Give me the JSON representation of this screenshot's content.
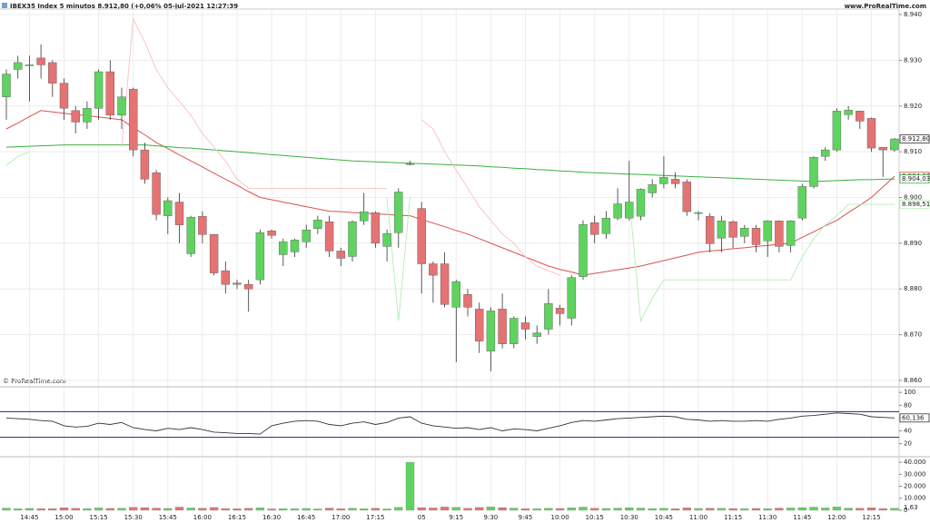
{
  "header": {
    "title": "IBEX35 Index 5 minutos 8.912,80 (+0,06% 05-jul-2021 12:27:39",
    "site": "www.ProRealTime.com",
    "copyright": "© ProRealTime.com"
  },
  "chart_data": [
    {
      "type": "candlestick",
      "categories": [
        null,
        null,
        "14:45",
        null,
        null,
        "15:00",
        null,
        null,
        "15:15",
        null,
        null,
        "15:30",
        null,
        null,
        "15:45",
        null,
        null,
        "16:00",
        null,
        null,
        "16:15",
        null,
        null,
        "16:30",
        null,
        null,
        "16:45",
        null,
        null,
        "17:00",
        null,
        null,
        "17:15",
        null,
        null,
        null,
        "05",
        null,
        null,
        "9:15",
        null,
        null,
        "9:30",
        null,
        null,
        "9:45",
        null,
        null,
        "10:00",
        null,
        null,
        "10:15",
        null,
        null,
        "10:30",
        null,
        null,
        "10:45",
        null,
        null,
        "11:00",
        null,
        null,
        "11:15",
        null,
        null,
        "11:30",
        null,
        null,
        "11:45",
        null,
        null,
        "12:00",
        null,
        null,
        "12:15",
        null,
        null
      ],
      "open": [
        8922,
        8928,
        8929,
        8930.5,
        8929.5,
        8925,
        8919,
        8916.5,
        8919.5,
        8927.5,
        8918,
        8923.7,
        8910.4,
        8905.4,
        8896,
        8899,
        8887.7,
        8895.9,
        8891.9,
        8884,
        8881.3,
        8881,
        8882,
        8892.7,
        8887.5,
        8888.1,
        8890.3,
        8893.2,
        8894.7,
        8888.3,
        8887.1,
        8894.9,
        8896.7,
        8889.3,
        8892.3,
        8907.4,
        8897.6,
        8885.5,
        8885.5,
        8876,
        8878.8,
        8875.6,
        8866.4,
        8875.6,
        8868,
        8872.6,
        8869.6,
        8871.2,
        8875.8,
        8873.6,
        8882.7,
        8894.5,
        8892.1,
        8895.5,
        8895.5,
        8895.9,
        8901,
        8903,
        8904,
        8903.4,
        8896.7,
        8895.9,
        8891.1,
        8894.7,
        8891.5,
        8893.3,
        8890.5,
        8894.9,
        8889.5,
        8895.5,
        8902.4,
        8909,
        8910.4,
        8918.1,
        8918.9,
        8917.3,
        8911,
        8910.4
      ],
      "high": [
        8928,
        8931,
        8931,
        8933.5,
        8930,
        8926,
        8920,
        8921,
        8928,
        8930,
        8924,
        8924,
        8912,
        8906,
        8900,
        8901,
        8896,
        8897,
        8892,
        8886,
        8882,
        8882,
        8893,
        8893,
        8891,
        8891,
        8894,
        8896,
        8896,
        8889,
        8895,
        8901,
        8897,
        8893,
        8902,
        8908,
        8899,
        8886,
        8888,
        8882,
        8880,
        8877,
        8876,
        8879,
        8874,
        8874,
        8872,
        8880,
        8876.5,
        8883,
        8895,
        8896,
        8897,
        8902,
        8908,
        8902,
        8904,
        8909,
        8905.5,
        8904,
        8897,
        8896.5,
        8896,
        8895,
        8894,
        8894,
        8895,
        8895,
        8895,
        8903,
        8909,
        8911,
        8919.5,
        8920,
        8919,
        8917.5,
        8911,
        8913
      ],
      "low": [
        8917,
        8926,
        8921,
        8926,
        8922,
        8917,
        8914,
        8915,
        8917,
        8917,
        8915,
        8909,
        8903,
        8895,
        8892,
        8890,
        8887,
        8890,
        8883,
        8879,
        8880,
        8875,
        8881,
        8891,
        8885,
        8887,
        8889,
        8892,
        8887,
        8885,
        8886,
        8894,
        8889,
        8886,
        8889,
        8907,
        8879,
        8877,
        8876,
        8864,
        8874,
        8866,
        8862,
        8867,
        8867,
        8869,
        8868,
        8870,
        8872,
        8872,
        8882,
        8890,
        8891,
        8895,
        8895,
        8895,
        8900,
        8902,
        8902,
        8896,
        8895,
        8888,
        8888,
        8889,
        8890,
        8888,
        8887,
        8888,
        8888,
        8895,
        8902,
        8908,
        8910,
        8917,
        8915,
        8910,
        8904.5,
        8910
      ],
      "close": [
        8927,
        8929.5,
        8929,
        8929,
        8925,
        8919.5,
        8916.5,
        8919.5,
        8927.5,
        8918,
        8922,
        8910.4,
        8904,
        8896.3,
        8899.3,
        8894,
        8895.7,
        8891.9,
        8883.5,
        8881,
        8881,
        8880,
        8892.3,
        8891.7,
        8890.3,
        8890.7,
        8892.9,
        8895.1,
        8888.3,
        8886.7,
        8894.7,
        8896.9,
        8890,
        8892.1,
        8901.2,
        8907.4,
        8885.5,
        8883,
        8876.6,
        8881.6,
        8876,
        8868.6,
        8875.2,
        8868,
        8873.6,
        8871.2,
        8870.4,
        8876.8,
        8874.6,
        8882.5,
        8894.1,
        8891.9,
        8895.5,
        8898.6,
        8899,
        8901.8,
        8902.8,
        8904.4,
        8903,
        8896.9,
        8896.7,
        8889.9,
        8894.9,
        8891.3,
        8893.3,
        8889.7,
        8894.9,
        8889.3,
        8894.9,
        8902.4,
        8908.8,
        8910.4,
        8918.9,
        8919.1,
        8916.7,
        8910.8,
        8910.4,
        8912.8
      ],
      "last_label": "8.912,80",
      "up_color": "#5fd35f",
      "down_color": "#e57373",
      "ylim": [
        8858.8,
        8941.2
      ],
      "yticks": [
        {
          "value": 8860,
          "label": "8.860"
        },
        {
          "value": 8870,
          "label": "8.870"
        },
        {
          "value": 8880,
          "label": "8.880"
        },
        {
          "value": 8890,
          "label": "8.890"
        },
        {
          "value": 8900,
          "label": "8.900"
        },
        {
          "value": 8910,
          "label": "8.910"
        },
        {
          "value": 8920,
          "label": "8.920"
        },
        {
          "value": 8930,
          "label": "8.930"
        },
        {
          "value": 8940,
          "label": "8.940"
        }
      ],
      "grid": true,
      "overlays": [
        {
          "color": "#d9534f",
          "last_label": "8.904,63",
          "values": [
            8915,
            8916.3,
            8917.7,
            8919,
            8918.7,
            8918.4,
            8918.1,
            8917.9,
            8917.6,
            8917.3,
            8917,
            8915.3,
            8913.7,
            8912,
            8910.7,
            8909.3,
            8908,
            8906.7,
            8905.3,
            8904,
            8902.7,
            8901.3,
            8900,
            8899.5,
            8899,
            8898.5,
            8898,
            8897.5,
            8897,
            8896.9,
            8896.7,
            8896.6,
            8896.4,
            8896.3,
            8896.1,
            8896,
            8895.2,
            8894.4,
            8893.6,
            8892.8,
            8892,
            8891,
            8890,
            8889,
            8888,
            8887,
            8886,
            8885,
            8884.3,
            8883.7,
            8883,
            8883.4,
            8883.8,
            8884.2,
            8884.6,
            8885,
            8885.6,
            8886.2,
            8886.8,
            8887.4,
            8888,
            8888.3,
            8888.5,
            8888.8,
            8889,
            8889.3,
            8889.5,
            8889.8,
            8890,
            8891.3,
            8892.5,
            8893.8,
            8895,
            8896.7,
            8898.3,
            8900,
            8902.3,
            8904.63
          ]
        },
        {
          "color": "#3cb043",
          "last_label": "8.904,03",
          "values": [
            8911,
            8911.1,
            8911.2,
            8911.3,
            8911.4,
            8911.5,
            8911.5,
            8911.5,
            8911.5,
            8911.5,
            8911.5,
            8911.5,
            8911.5,
            8911.3,
            8911.1,
            8910.9,
            8910.8,
            8910.6,
            8910.4,
            8910.2,
            8910,
            8909.8,
            8909.6,
            8909.4,
            8909.2,
            8909,
            8908.8,
            8908.6,
            8908.4,
            8908.2,
            8908,
            8907.9,
            8907.8,
            8907.7,
            8907.6,
            8907.5,
            8907.4,
            8907.3,
            8907.2,
            8907.1,
            8907,
            8906.9,
            8906.7,
            8906.6,
            8906.4,
            8906.3,
            8906.1,
            8906,
            8905.8,
            8905.7,
            8905.5,
            8905.4,
            8905.3,
            8905.2,
            8905.1,
            8905,
            8904.9,
            8904.8,
            8904.7,
            8904.6,
            8904.5,
            8904.4,
            8904.3,
            8904.2,
            8904.1,
            8904,
            8903.9,
            8903.8,
            8903.7,
            8903.6,
            8903.5,
            8903.6,
            8903.7,
            8903.8,
            8903.9,
            8903.9,
            8904,
            8904.03
          ]
        },
        {
          "color": "#f7c6c6",
          "values": [
            null,
            null,
            null,
            null,
            null,
            null,
            null,
            null,
            null,
            null,
            8911,
            8939,
            8934,
            8928,
            8924,
            8921,
            8918,
            8914,
            8911,
            8908,
            8904,
            8902,
            8902,
            8902,
            8902,
            8902,
            8902,
            8902,
            8902,
            8902,
            8902,
            8902,
            8902,
            8902,
            null,
            null,
            8917,
            8915,
            8910,
            8906,
            8902,
            8898,
            8895,
            8892,
            8890,
            8887,
            8885,
            8884,
            8883,
            null,
            null,
            null,
            null,
            null,
            null,
            null,
            null,
            null,
            null,
            null,
            null,
            null,
            null,
            null,
            null,
            null,
            null,
            null,
            null,
            null,
            null,
            null,
            null,
            null,
            null,
            null,
            null,
            null
          ]
        },
        {
          "color": "#b8f0b8",
          "last_label": "8.898,51",
          "values": [
            8907,
            8909,
            8910,
            null,
            null,
            null,
            null,
            null,
            null,
            null,
            null,
            null,
            null,
            null,
            null,
            null,
            null,
            null,
            null,
            null,
            null,
            null,
            null,
            null,
            null,
            null,
            null,
            null,
            null,
            null,
            null,
            null,
            null,
            8900,
            8873,
            8900,
            null,
            null,
            null,
            null,
            null,
            null,
            null,
            null,
            null,
            null,
            null,
            null,
            null,
            null,
            null,
            null,
            null,
            null,
            8900,
            8873,
            8878,
            8882,
            8882,
            8882,
            8882,
            8882,
            8882,
            8882,
            8882,
            8882,
            8882,
            8882,
            8882,
            8887,
            8891,
            8894,
            8896,
            8898.51,
            8898.51,
            8898.51,
            8898.51,
            8898.51
          ]
        }
      ]
    },
    {
      "type": "line",
      "color": "#333333",
      "values": [
        60,
        59,
        58,
        56,
        55,
        48,
        46,
        47,
        52,
        50,
        53,
        45,
        42,
        40,
        44,
        42,
        45,
        42,
        38,
        37,
        36,
        36,
        35,
        48,
        52,
        55,
        56,
        55,
        50,
        48,
        52,
        54,
        50,
        53,
        60,
        62,
        52,
        48,
        46,
        44,
        45,
        42,
        45,
        40,
        43,
        42,
        40,
        44,
        48,
        53,
        56,
        55,
        57,
        59,
        60,
        61,
        62,
        63,
        62,
        58,
        57,
        55,
        56,
        55,
        55,
        56,
        55,
        58,
        60,
        63,
        64,
        66,
        68,
        67,
        66,
        62,
        61,
        60.136
      ],
      "last_label": "60,136",
      "levels": [
        70,
        30
      ],
      "level_color": "#1f2a6b",
      "ylim": [
        1.1,
        107.3
      ],
      "yticks": [
        20,
        40,
        60,
        80,
        100
      ]
    },
    {
      "type": "bar",
      "values": [
        1800,
        1200,
        1500,
        1300,
        1400,
        2100,
        1600,
        1300,
        1900,
        1500,
        1700,
        2400,
        2200,
        1800,
        1500,
        2600,
        1900,
        1700,
        2300,
        1400,
        1200,
        1600,
        2000,
        1100,
        1300,
        1200,
        1500,
        1100,
        1800,
        1300,
        1700,
        1200,
        1600,
        1100,
        2500,
        40000,
        2200,
        1900,
        2700,
        2400,
        1600,
        2300,
        2800,
        2200,
        1800,
        1300,
        1200,
        1700,
        1500,
        2000,
        2600,
        1700,
        1500,
        1800,
        2100,
        1800,
        1400,
        1600,
        1300,
        2000,
        1500,
        1700,
        1600,
        1400,
        1200,
        1500,
        1300,
        1800,
        1900,
        2200,
        2600,
        1900,
        2800,
        1800,
        1700,
        2100,
        1400,
        1600
      ],
      "annotation": "1,63",
      "ylim": [
        -800,
        43850
      ],
      "yticks": [
        0,
        {
          "value": 10000,
          "label": "10.000"
        },
        {
          "value": 20000,
          "label": "20.000"
        },
        {
          "value": 30000,
          "label": "30.000"
        },
        {
          "value": 40000,
          "label": "40.000"
        }
      ]
    }
  ]
}
